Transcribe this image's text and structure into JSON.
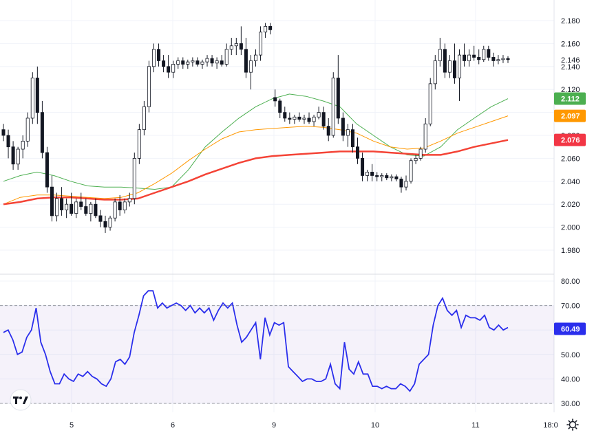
{
  "chart_data": [
    {
      "type": "candlestick",
      "ylim": [
        1.97,
        2.19
      ],
      "y_ticks": [
        "2.180",
        "2.160",
        "2.140",
        "2.120",
        "2.100",
        "2.080",
        "2.060",
        "2.040",
        "2.020",
        "2.000",
        "1.980"
      ],
      "last_price": "2.146",
      "x_ticks": [
        "5",
        "6",
        "9",
        "10",
        "11",
        "18:0"
      ],
      "candles": [
        [
          2.085,
          2.09,
          2.075,
          2.08
        ],
        [
          2.08,
          2.085,
          2.06,
          2.07
        ],
        [
          2.07,
          2.075,
          2.05,
          2.055
        ],
        [
          2.055,
          2.07,
          2.05,
          2.068
        ],
        [
          2.068,
          2.08,
          2.06,
          2.075
        ],
        [
          2.075,
          2.1,
          2.07,
          2.095
        ],
        [
          2.095,
          2.135,
          2.09,
          2.13
        ],
        [
          2.13,
          2.14,
          2.09,
          2.1
        ],
        [
          2.1,
          2.11,
          2.06,
          2.065
        ],
        [
          2.065,
          2.07,
          2.03,
          2.035
        ],
        [
          2.035,
          2.045,
          2.005,
          2.01
        ],
        [
          2.01,
          2.03,
          2.005,
          2.025
        ],
        [
          2.025,
          2.035,
          2.01,
          2.015
        ],
        [
          2.015,
          2.025,
          2.008,
          2.02
        ],
        [
          2.02,
          2.03,
          2.01,
          2.012
        ],
        [
          2.012,
          2.025,
          2.008,
          2.022
        ],
        [
          2.022,
          2.03,
          2.015,
          2.018
        ],
        [
          2.018,
          2.025,
          2.01,
          2.012
        ],
        [
          2.012,
          2.022,
          2.005,
          2.02
        ],
        [
          2.02,
          2.025,
          2.008,
          2.01
        ],
        [
          2.01,
          2.015,
          2.0,
          2.005
        ],
        [
          2.005,
          2.01,
          1.995,
          2.0
        ],
        [
          2.0,
          2.01,
          1.997,
          2.008
        ],
        [
          2.008,
          2.025,
          2.005,
          2.022
        ],
        [
          2.022,
          2.028,
          2.01,
          2.015
        ],
        [
          2.015,
          2.025,
          2.012,
          2.022
        ],
        [
          2.022,
          2.03,
          2.018,
          2.025
        ],
        [
          2.025,
          2.065,
          2.02,
          2.06
        ],
        [
          2.06,
          2.09,
          2.055,
          2.085
        ],
        [
          2.085,
          2.11,
          2.08,
          2.105
        ],
        [
          2.105,
          2.145,
          2.1,
          2.14
        ],
        [
          2.14,
          2.16,
          2.135,
          2.155
        ],
        [
          2.155,
          2.16,
          2.14,
          2.145
        ],
        [
          2.145,
          2.15,
          2.135,
          2.14
        ],
        [
          2.14,
          2.15,
          2.13,
          2.135
        ],
        [
          2.135,
          2.145,
          2.13,
          2.142
        ],
        [
          2.142,
          2.148,
          2.138,
          2.145
        ],
        [
          2.145,
          2.148,
          2.138,
          2.142
        ],
        [
          2.142,
          2.146,
          2.138,
          2.144
        ],
        [
          2.144,
          2.148,
          2.14,
          2.145
        ],
        [
          2.145,
          2.148,
          2.14,
          2.142
        ],
        [
          2.142,
          2.146,
          2.138,
          2.144
        ],
        [
          2.144,
          2.15,
          2.14,
          2.147
        ],
        [
          2.147,
          2.15,
          2.14,
          2.143
        ],
        [
          2.143,
          2.148,
          2.138,
          2.145
        ],
        [
          2.145,
          2.15,
          2.14,
          2.142
        ],
        [
          2.142,
          2.16,
          2.14,
          2.155
        ],
        [
          2.155,
          2.165,
          2.15,
          2.158
        ],
        [
          2.158,
          2.165,
          2.15,
          2.16
        ],
        [
          2.16,
          2.175,
          2.15,
          2.155
        ],
        [
          2.155,
          2.165,
          2.13,
          2.135
        ],
        [
          2.135,
          2.15,
          2.12,
          2.145
        ],
        [
          2.145,
          2.155,
          2.14,
          2.15
        ],
        [
          2.15,
          2.175,
          2.145,
          2.17
        ],
        [
          2.17,
          2.178,
          2.165,
          2.175
        ],
        [
          2.175,
          2.178,
          2.168,
          2.172
        ],
        [
          2.113,
          2.12,
          2.105,
          2.11
        ],
        [
          2.11,
          2.112,
          2.095,
          2.1
        ],
        [
          2.1,
          2.105,
          2.092,
          2.095
        ],
        [
          2.095,
          2.1,
          2.09,
          2.094
        ],
        [
          2.094,
          2.098,
          2.09,
          2.096
        ],
        [
          2.096,
          2.1,
          2.092,
          2.094
        ],
        [
          2.094,
          2.098,
          2.09,
          2.095
        ],
        [
          2.095,
          2.1,
          2.09,
          2.092
        ],
        [
          2.092,
          2.098,
          2.088,
          2.096
        ],
        [
          2.096,
          2.105,
          2.094,
          2.1
        ],
        [
          2.1,
          2.105,
          2.085,
          2.088
        ],
        [
          2.088,
          2.095,
          2.075,
          2.08
        ],
        [
          2.08,
          2.135,
          2.078,
          2.13
        ],
        [
          2.13,
          2.15,
          2.09,
          2.095
        ],
        [
          2.095,
          2.1,
          2.075,
          2.08
        ],
        [
          2.08,
          2.09,
          2.07,
          2.085
        ],
        [
          2.085,
          2.09,
          2.065,
          2.07
        ],
        [
          2.07,
          2.078,
          2.055,
          2.06
        ],
        [
          2.06,
          2.065,
          2.04,
          2.045
        ],
        [
          2.045,
          2.05,
          2.04,
          2.048
        ],
        [
          2.048,
          2.055,
          2.04,
          2.045
        ],
        [
          2.045,
          2.048,
          2.04,
          2.044
        ],
        [
          2.044,
          2.047,
          2.04,
          2.045
        ],
        [
          2.045,
          2.047,
          2.041,
          2.043
        ],
        [
          2.043,
          2.046,
          2.04,
          2.044
        ],
        [
          2.044,
          2.046,
          2.04,
          2.042
        ],
        [
          2.042,
          2.044,
          2.03,
          2.035
        ],
        [
          2.035,
          2.045,
          2.032,
          2.04
        ],
        [
          2.04,
          2.06,
          2.038,
          2.058
        ],
        [
          2.058,
          2.063,
          2.055,
          2.06
        ],
        [
          2.06,
          2.07,
          2.058,
          2.068
        ],
        [
          2.068,
          2.095,
          2.065,
          2.09
        ],
        [
          2.09,
          2.13,
          2.088,
          2.125
        ],
        [
          2.125,
          2.15,
          2.12,
          2.145
        ],
        [
          2.145,
          2.165,
          2.14,
          2.155
        ],
        [
          2.155,
          2.16,
          2.13,
          2.135
        ],
        [
          2.135,
          2.15,
          2.13,
          2.145
        ],
        [
          2.145,
          2.16,
          2.125,
          2.13
        ],
        [
          2.13,
          2.155,
          2.11,
          2.15
        ],
        [
          2.15,
          2.16,
          2.14,
          2.145
        ],
        [
          2.145,
          2.155,
          2.14,
          2.15
        ],
        [
          2.15,
          2.158,
          2.145,
          2.148
        ],
        [
          2.148,
          2.155,
          2.142,
          2.146
        ],
        [
          2.146,
          2.158,
          2.144,
          2.155
        ],
        [
          2.155,
          2.158,
          2.145,
          2.148
        ],
        [
          2.148,
          2.152,
          2.14,
          2.145
        ],
        [
          2.145,
          2.15,
          2.142,
          2.146
        ],
        [
          2.146,
          2.15,
          2.143,
          2.147
        ],
        [
          2.147,
          2.149,
          2.143,
          2.146
        ]
      ],
      "moving_averages": [
        {
          "color": "#4caf50",
          "label": "2.112",
          "width": 1,
          "points": [
            2.04,
            2.045,
            2.048,
            2.045,
            2.04,
            2.036,
            2.035,
            2.035,
            2.034,
            2.033,
            2.035,
            2.05,
            2.07,
            2.083,
            2.095,
            2.105,
            2.112,
            2.116,
            2.114,
            2.11,
            2.105,
            2.09,
            2.08,
            2.07,
            2.063,
            2.062,
            2.07,
            2.085,
            2.095,
            2.105,
            2.112
          ]
        },
        {
          "color": "#ff9800",
          "label": "2.097",
          "width": 1,
          "points": [
            2.02,
            2.026,
            2.028,
            2.028,
            2.027,
            2.026,
            2.025,
            2.026,
            2.03,
            2.038,
            2.047,
            2.058,
            2.068,
            2.077,
            2.083,
            2.085,
            2.086,
            2.087,
            2.088,
            2.087,
            2.085,
            2.082,
            2.075,
            2.07,
            2.068,
            2.069,
            2.075,
            2.082,
            2.087,
            2.092,
            2.097
          ]
        },
        {
          "color": "#f44336",
          "label": "2.076",
          "width": 2.5,
          "points": [
            2.02,
            2.022,
            2.025,
            2.026,
            2.026,
            2.025,
            2.024,
            2.024,
            2.025,
            2.03,
            2.035,
            2.04,
            2.046,
            2.051,
            2.056,
            2.06,
            2.062,
            2.063,
            2.064,
            2.065,
            2.066,
            2.066,
            2.066,
            2.065,
            2.064,
            2.063,
            2.063,
            2.066,
            2.07,
            2.073,
            2.076
          ]
        }
      ]
    },
    {
      "type": "line",
      "ylim": [
        25,
        83
      ],
      "y_ticks": [
        "80.00",
        "70.00",
        "60.00",
        "50.00",
        "40.00",
        "30.00"
      ],
      "band": [
        30,
        70
      ],
      "series_color": "#2a2eec",
      "last_value": "60.49",
      "values": [
        59,
        60,
        56,
        50,
        51,
        57,
        60,
        69,
        55,
        50,
        43,
        38,
        38,
        42,
        40,
        39,
        42,
        41,
        43,
        41,
        40,
        38,
        37,
        40,
        47,
        48,
        46,
        49,
        59,
        66,
        74,
        76,
        76,
        69,
        71,
        69,
        70,
        71,
        70,
        68,
        70,
        67,
        69,
        67,
        69,
        64,
        68,
        71,
        69,
        71,
        62,
        55,
        57,
        60,
        63,
        48,
        65,
        58,
        63,
        62,
        63,
        45,
        43,
        41,
        39,
        40,
        40,
        39,
        39,
        40,
        46,
        38,
        36,
        55,
        44,
        42,
        47,
        42,
        42,
        37,
        37,
        36,
        37,
        36,
        36,
        38,
        37,
        35,
        38,
        46,
        48,
        50,
        62,
        70,
        73,
        68,
        66,
        68,
        61,
        66,
        65,
        65,
        64,
        66,
        61,
        60,
        62,
        60,
        61
      ]
    }
  ],
  "badges": {
    "green": {
      "text": "2.112",
      "color": "#4caf50"
    },
    "orange": {
      "text": "2.097",
      "color": "#ff9800"
    },
    "red": {
      "text": "2.076",
      "color": "#f23645"
    },
    "rsi": {
      "text": "60.49",
      "color": "#2a2eec"
    }
  },
  "icons": {
    "logo": "tradingview-logo",
    "settings": "gear-icon"
  }
}
